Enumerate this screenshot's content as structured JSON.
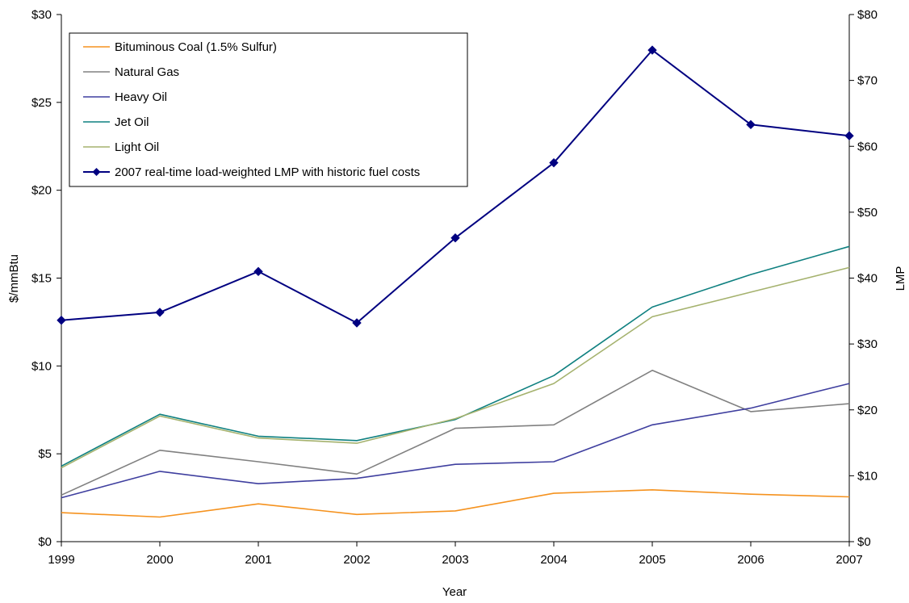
{
  "chart_data": {
    "type": "line",
    "title": "",
    "xlabel": "Year",
    "ylabel_left": "$/mmBtu",
    "ylabel_right": "LMP",
    "categories": [
      "1999",
      "2000",
      "2001",
      "2002",
      "2003",
      "2004",
      "2005",
      "2006",
      "2007"
    ],
    "left_axis": {
      "ylim": [
        0,
        30
      ],
      "ticks": [
        0,
        5,
        10,
        15,
        20,
        25,
        30
      ],
      "tick_labels": [
        "$0",
        "$5",
        "$10",
        "$15",
        "$20",
        "$25",
        "$30"
      ]
    },
    "right_axis": {
      "ylim": [
        0,
        80
      ],
      "ticks": [
        0,
        10,
        20,
        30,
        40,
        50,
        60,
        70,
        80
      ],
      "tick_labels": [
        "$0",
        "$10",
        "$20",
        "$30",
        "$40",
        "$50",
        "$60",
        "$70",
        "$80"
      ]
    },
    "grid": false,
    "legend_position": "top-left",
    "series": [
      {
        "name": "Bituminous Coal (1.5% Sulfur)",
        "axis": "left",
        "color": "#F5921E",
        "marker": "none",
        "values": [
          1.65,
          1.4,
          2.15,
          1.55,
          1.75,
          2.75,
          2.95,
          2.7,
          2.55
        ]
      },
      {
        "name": "Natural Gas",
        "axis": "left",
        "color": "#808080",
        "marker": "none",
        "values": [
          2.65,
          5.2,
          4.55,
          3.85,
          6.45,
          6.65,
          9.75,
          7.4,
          7.85
        ]
      },
      {
        "name": "Heavy Oil",
        "axis": "left",
        "color": "#3F3F9F",
        "marker": "none",
        "values": [
          2.5,
          4.0,
          3.3,
          3.6,
          4.4,
          4.55,
          6.65,
          7.6,
          9.0
        ]
      },
      {
        "name": "Jet Oil",
        "axis": "left",
        "color": "#0F8080",
        "marker": "none",
        "values": [
          4.3,
          7.25,
          6.0,
          5.75,
          6.95,
          9.45,
          13.35,
          15.2,
          16.8
        ]
      },
      {
        "name": "Light Oil",
        "axis": "left",
        "color": "#A5B26E",
        "marker": "none",
        "values": [
          4.2,
          7.15,
          5.9,
          5.6,
          7.0,
          9.0,
          12.8,
          14.2,
          15.6
        ]
      },
      {
        "name": "2007 real-time load-weighted LMP with historic fuel costs",
        "axis": "right",
        "color": "#000080",
        "marker": "diamond",
        "values": [
          33.6,
          34.8,
          41.0,
          33.2,
          46.1,
          57.5,
          74.6,
          63.3,
          61.6
        ]
      }
    ]
  }
}
